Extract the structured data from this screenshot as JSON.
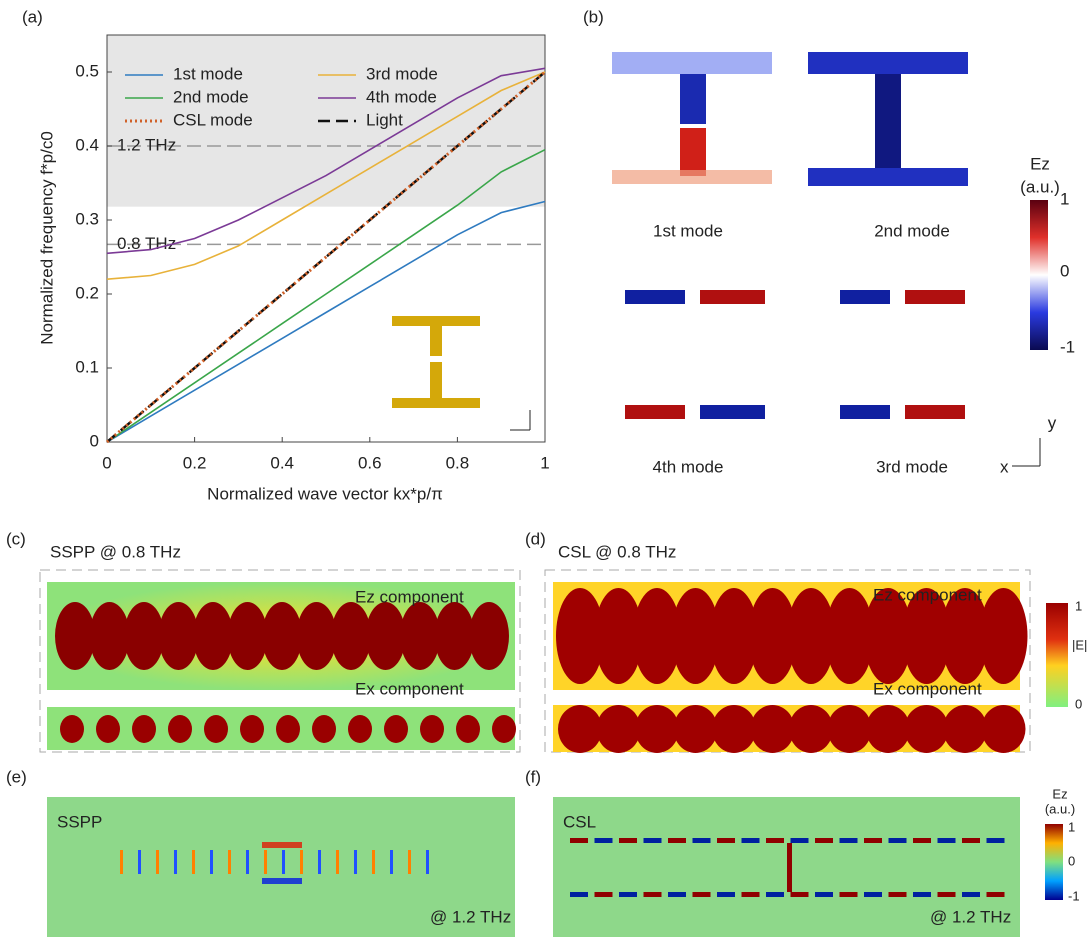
{
  "chart_data": {
    "type": "line",
    "panel_label": "(a)",
    "x_label": "Normalized wave vector kx*p/π",
    "y_label": "Normalized frequency f*p/c0",
    "x": [
      0,
      0.1,
      0.2,
      0.3,
      0.4,
      0.5,
      0.6,
      0.7,
      0.8,
      0.9,
      1
    ],
    "series": [
      {
        "name": "1st mode",
        "color": "#2f7bc0",
        "style": "solid",
        "values": [
          0,
          0.035,
          0.07,
          0.105,
          0.14,
          0.175,
          0.21,
          0.245,
          0.28,
          0.31,
          0.325
        ]
      },
      {
        "name": "3rd mode",
        "color": "#e8b23a",
        "style": "solid",
        "values": [
          0.22,
          0.225,
          0.24,
          0.265,
          0.3,
          0.335,
          0.37,
          0.405,
          0.44,
          0.475,
          0.5
        ]
      },
      {
        "name": "2nd mode",
        "color": "#3aa64a",
        "style": "solid",
        "values": [
          0,
          0.04,
          0.08,
          0.12,
          0.16,
          0.2,
          0.24,
          0.28,
          0.32,
          0.365,
          0.395
        ]
      },
      {
        "name": "4th mode",
        "color": "#7b3a96",
        "style": "solid",
        "values": [
          0.255,
          0.26,
          0.275,
          0.3,
          0.33,
          0.36,
          0.395,
          0.43,
          0.465,
          0.495,
          0.505
        ]
      },
      {
        "name": "CSL mode",
        "color": "#d0622a",
        "style": "dotted",
        "values": [
          0,
          0.05,
          0.1,
          0.15,
          0.2,
          0.25,
          0.3,
          0.35,
          0.4,
          0.45,
          0.5
        ]
      },
      {
        "name": "Light",
        "color": "#111111",
        "style": "dashed",
        "values": [
          0,
          0.05,
          0.1,
          0.15,
          0.2,
          0.25,
          0.3,
          0.35,
          0.4,
          0.45,
          0.5
        ]
      }
    ],
    "shaded_band": [
      0.318,
      0.55
    ],
    "reference_lines": [
      {
        "value": 0.4,
        "label": "1.2 THz"
      },
      {
        "value": 0.267,
        "label": "0.8 THz"
      }
    ],
    "xlim": [
      0,
      1
    ],
    "xticks": [
      0,
      0.2,
      0.4,
      0.6,
      0.8,
      1
    ],
    "ylim": [
      0,
      0.55
    ],
    "yticks": [
      0,
      0.1,
      0.2,
      0.3,
      0.4,
      0.5
    ]
  },
  "figure": {
    "b": {
      "label": "(b)",
      "modes": [
        "1st mode",
        "2nd mode",
        "4th mode",
        "3rd mode"
      ],
      "colorbar_title": "Ez",
      "colorbar_unit": "(a.u.)",
      "colorbar_ticks": [
        1,
        0,
        -1
      ],
      "axis_x": "x",
      "axis_y": "y"
    },
    "c": {
      "label": "(c)",
      "title": "SSPP @ 0.8 THz",
      "top": "Ez component",
      "bottom": "Ex component"
    },
    "d": {
      "label": "(d)",
      "title": "CSL @ 0.8 THz",
      "top": "Ez component",
      "bottom": "Ex component",
      "colorbar_title": "|E|",
      "colorbar_ticks": [
        1,
        0
      ]
    },
    "e": {
      "label": "(e)",
      "name": "SSPP",
      "freq": "@ 1.2 THz"
    },
    "f": {
      "label": "(f)",
      "name": "CSL",
      "freq": "@ 1.2 THz",
      "colorbar_title": "Ez",
      "colorbar_unit": "(a.u.)",
      "colorbar_ticks": [
        1,
        0,
        -1
      ]
    }
  }
}
